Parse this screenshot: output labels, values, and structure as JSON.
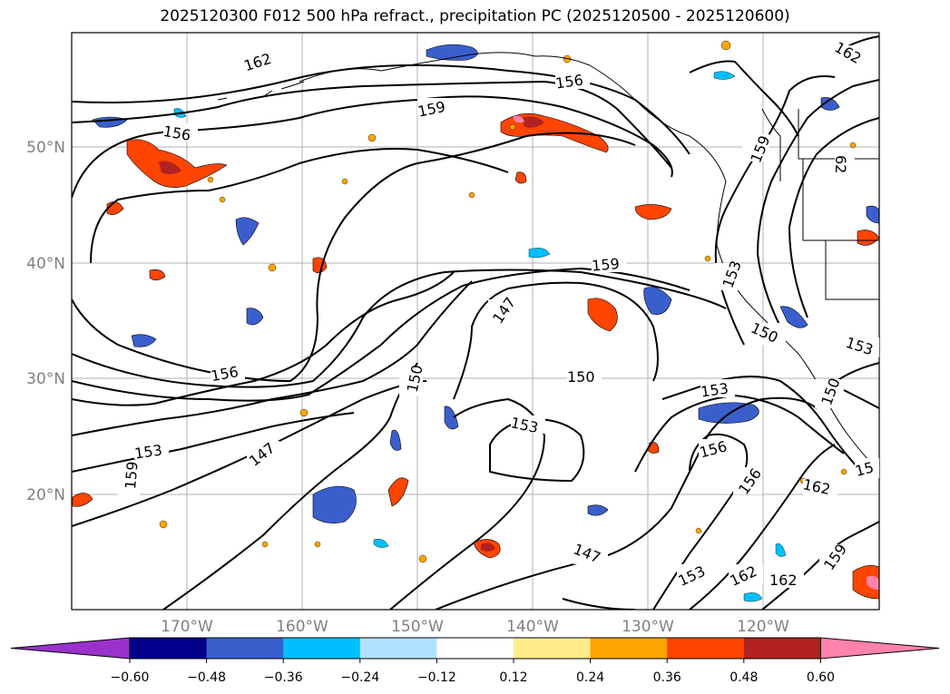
{
  "title": "2025120300 F012 500 hPa refract., precipitation PC (2025120500 - 2025120600)",
  "map": {
    "lat_ticks": [
      "50°N",
      "40°N",
      "30°N",
      "20°N"
    ],
    "lon_ticks": [
      "170°W",
      "160°W",
      "150°W",
      "140°W",
      "130°W",
      "120°W"
    ],
    "grid": true,
    "contour_levels": [
      147,
      150,
      153,
      156,
      159,
      162
    ],
    "contour_labels": [
      {
        "text": "162",
        "id": "c1"
      },
      {
        "text": "156",
        "id": "c2"
      },
      {
        "text": "159",
        "id": "c3"
      },
      {
        "text": "156",
        "id": "c4"
      },
      {
        "text": "162",
        "id": "c5"
      },
      {
        "text": "159",
        "id": "c6"
      },
      {
        "text": "159",
        "id": "c7"
      },
      {
        "text": "153",
        "id": "c8"
      },
      {
        "text": "147",
        "id": "c9"
      },
      {
        "text": "156",
        "id": "c10"
      },
      {
        "text": "150",
        "id": "c11"
      },
      {
        "text": "150",
        "id": "c12"
      },
      {
        "text": "153",
        "id": "c13"
      },
      {
        "text": "153",
        "id": "c14"
      },
      {
        "text": "147",
        "id": "c15"
      },
      {
        "text": "153",
        "id": "c16"
      },
      {
        "text": "156",
        "id": "c17"
      },
      {
        "text": "156",
        "id": "c18"
      },
      {
        "text": "162",
        "id": "c19"
      },
      {
        "text": "147",
        "id": "c20"
      },
      {
        "text": "153",
        "id": "c21"
      },
      {
        "text": "162",
        "id": "c22"
      },
      {
        "text": "162",
        "id": "c23"
      },
      {
        "text": "159",
        "id": "c24"
      },
      {
        "text": "150",
        "id": "c25"
      },
      {
        "text": "153",
        "id": "c26"
      },
      {
        "text": "159",
        "id": "c27"
      },
      {
        "text": "150",
        "id": "c28"
      },
      {
        "text": "15",
        "id": "c29"
      },
      {
        "text": "159",
        "id": "c30"
      },
      {
        "text": "62",
        "id": "c31"
      },
      {
        "text": "159",
        "id": "c32"
      }
    ]
  },
  "colorbar": {
    "tick_labels": [
      "-0.60",
      "-0.48",
      "-0.36",
      "-0.24",
      "-0.12",
      "0.12",
      "0.24",
      "0.36",
      "0.48",
      "0.60"
    ],
    "colors": [
      "#9932cc",
      "#00008b",
      "#3a5fcd",
      "#00bfff",
      "#b0e2ff",
      "#ffffff",
      "#ffec8b",
      "#ffa500",
      "#ff4500",
      "#b22222",
      "#ff82ab"
    ]
  }
}
